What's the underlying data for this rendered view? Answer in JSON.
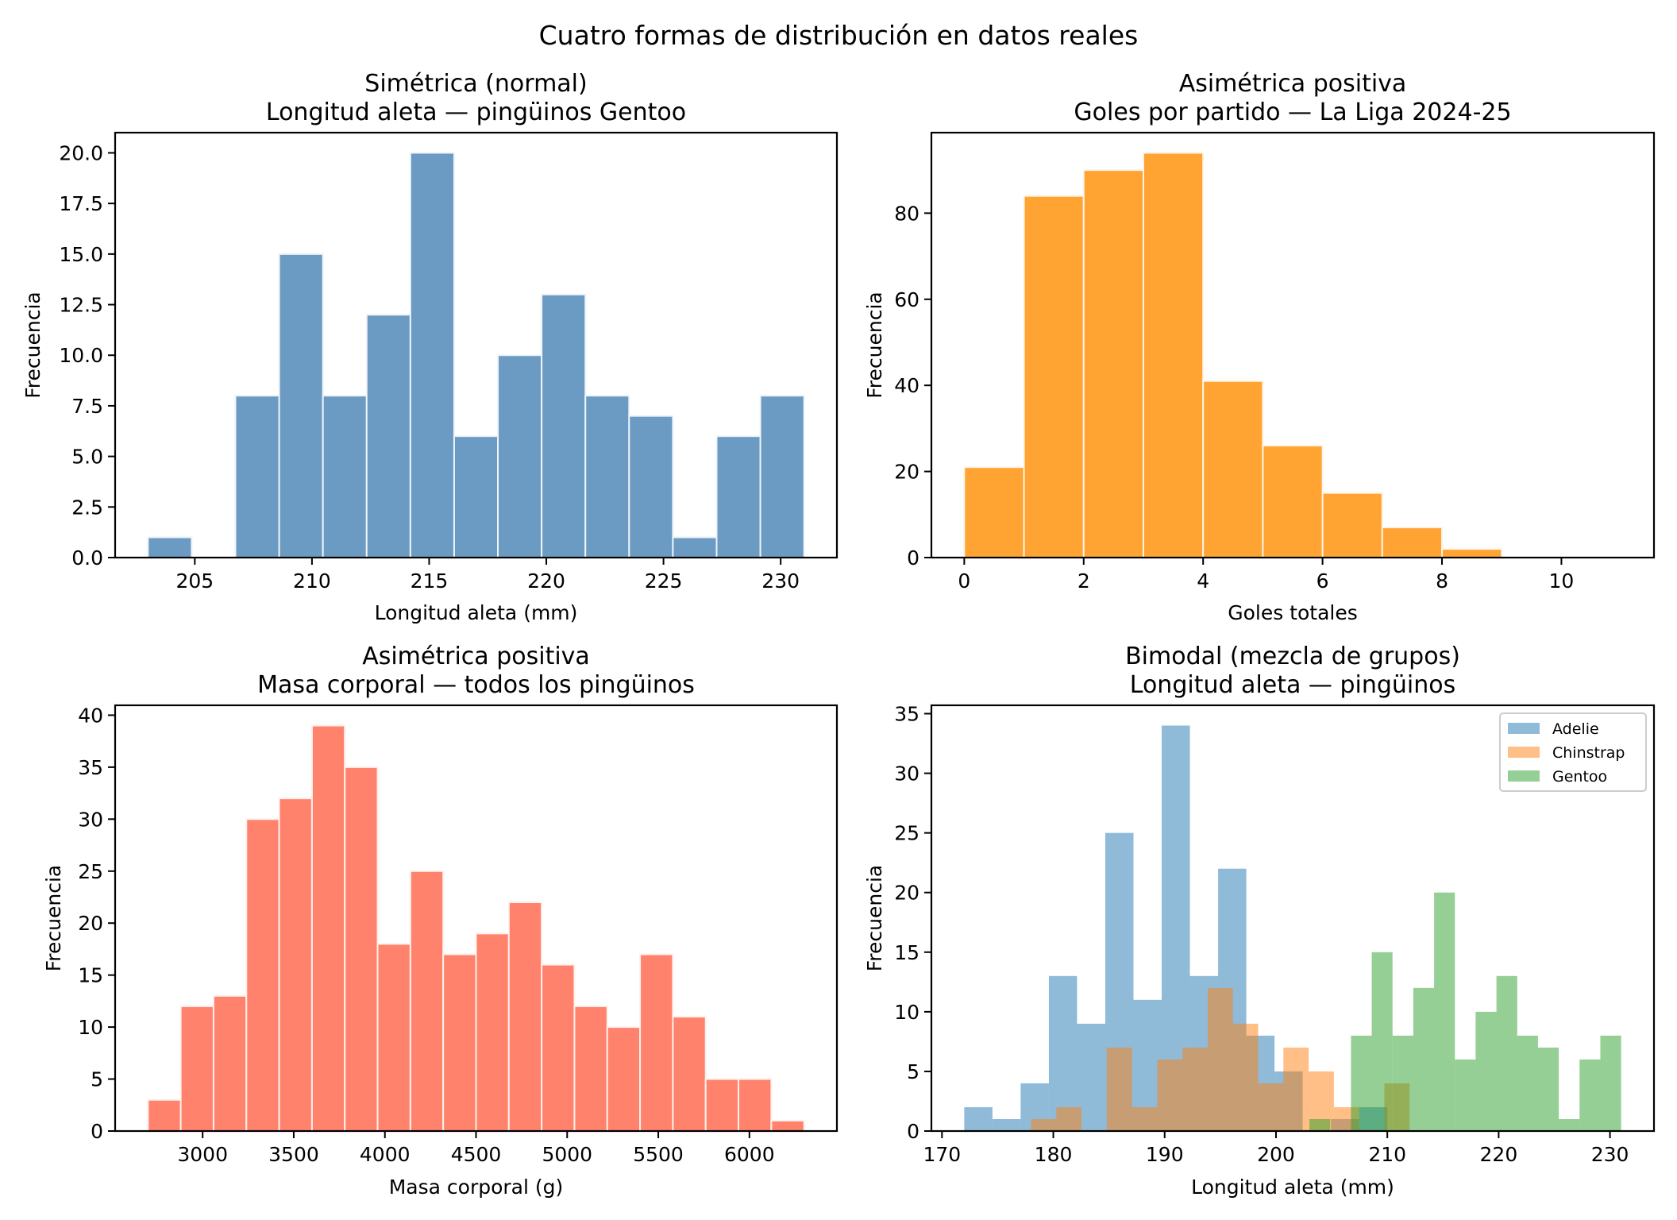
{
  "figure": {
    "suptitle": "Cuatro formas de distribución en datos reales"
  },
  "chart_data": [
    {
      "type": "bar",
      "kind": "histogram",
      "title": "Simétrica (normal)",
      "subtitle": "Longitud aleta — pingüinos Gentoo",
      "xlabel": "Longitud aleta (mm)",
      "ylabel": "Frecuencia",
      "bin_range": [
        203,
        231
      ],
      "values": [
        1,
        0,
        8,
        15,
        8,
        12,
        20,
        6,
        10,
        13,
        8,
        7,
        1,
        6,
        8
      ],
      "xlim": [
        201.6,
        232.4
      ],
      "ylim": [
        0,
        21
      ],
      "xticks": [
        205,
        210,
        215,
        220,
        225,
        230
      ],
      "xtick_labels": [
        "205",
        "210",
        "215",
        "220",
        "225",
        "230"
      ],
      "yticks": [
        0,
        2.5,
        5,
        7.5,
        10,
        12.5,
        15,
        17.5,
        20
      ],
      "ytick_labels": [
        "0.0",
        "2.5",
        "5.0",
        "7.5",
        "10.0",
        "12.5",
        "15.0",
        "17.5",
        "20.0"
      ],
      "color": "#6b9bc3",
      "edge_color": "#eef3f8",
      "grid": false
    },
    {
      "type": "bar",
      "kind": "histogram",
      "title": "Asimétrica positiva",
      "subtitle": "Goles por partido — La Liga 2024-25",
      "xlabel": "Goles totales",
      "ylabel": "Frecuencia",
      "bin_range": [
        0,
        11
      ],
      "values": [
        21,
        84,
        90,
        94,
        41,
        26,
        15,
        7,
        2,
        0,
        0
      ],
      "xlim": [
        -0.55,
        11.55
      ],
      "ylim": [
        0,
        98.7
      ],
      "xticks": [
        0,
        2,
        4,
        6,
        8,
        10
      ],
      "xtick_labels": [
        "0",
        "2",
        "4",
        "6",
        "8",
        "10"
      ],
      "yticks": [
        0,
        20,
        40,
        60,
        80
      ],
      "ytick_labels": [
        "0",
        "20",
        "40",
        "60",
        "80"
      ],
      "color": "#ffa333",
      "edge_color": "#fff3e6",
      "grid": false
    },
    {
      "type": "bar",
      "kind": "histogram",
      "title": "Asimétrica positiva",
      "subtitle": "Masa corporal — todos los pingüinos",
      "xlabel": "Masa corporal (g)",
      "ylabel": "Frecuencia",
      "bin_range": [
        2700,
        6300
      ],
      "values": [
        3,
        12,
        13,
        30,
        32,
        39,
        35,
        18,
        25,
        17,
        19,
        22,
        16,
        12,
        10,
        17,
        11,
        5,
        5,
        1
      ],
      "xlim": [
        2520,
        6480
      ],
      "ylim": [
        0,
        40.95
      ],
      "xticks": [
        3000,
        3500,
        4000,
        4500,
        5000,
        5500,
        6000
      ],
      "xtick_labels": [
        "3000",
        "3500",
        "4000",
        "4500",
        "5000",
        "5500",
        "6000"
      ],
      "yticks": [
        0,
        5,
        10,
        15,
        20,
        25,
        30,
        35,
        40
      ],
      "ytick_labels": [
        "0",
        "5",
        "10",
        "15",
        "20",
        "25",
        "30",
        "35",
        "40"
      ],
      "color": "#ff826c",
      "edge_color": "#fff0ed",
      "grid": false
    },
    {
      "type": "bar",
      "kind": "histogram-overlay",
      "title": "Bimodal (mezcla de grupos)",
      "subtitle": "Longitud aleta — pingüinos",
      "xlabel": "Longitud aleta (mm)",
      "ylabel": "Frecuencia",
      "xlim": [
        169.05,
        233.95
      ],
      "ylim": [
        0,
        35.7
      ],
      "xticks": [
        170,
        180,
        190,
        200,
        210,
        220,
        230
      ],
      "xtick_labels": [
        "170",
        "180",
        "190",
        "200",
        "210",
        "220",
        "230"
      ],
      "yticks": [
        0,
        5,
        10,
        15,
        20,
        25,
        30,
        35
      ],
      "ytick_labels": [
        "0",
        "5",
        "10",
        "15",
        "20",
        "25",
        "30",
        "35"
      ],
      "legend_position": "top-right",
      "opacity": 0.5,
      "series": [
        {
          "name": "Adelie",
          "color": "#1f77b4",
          "bin_range": [
            172,
            210
          ],
          "values": [
            2,
            1,
            4,
            13,
            9,
            25,
            11,
            34,
            13,
            22,
            8,
            5,
            0,
            1,
            2
          ]
        },
        {
          "name": "Chinstrap",
          "color": "#ff7f0e",
          "bin_range": [
            178,
            212
          ],
          "values": [
            1,
            2,
            0,
            7,
            2,
            6,
            7,
            12,
            9,
            4,
            7,
            5,
            2,
            0,
            4
          ]
        },
        {
          "name": "Gentoo",
          "color": "#2ca02c",
          "bin_range": [
            203,
            231
          ],
          "values": [
            1,
            0,
            8,
            15,
            8,
            12,
            20,
            6,
            10,
            13,
            8,
            7,
            1,
            6,
            8
          ]
        }
      ],
      "grid": false
    }
  ]
}
